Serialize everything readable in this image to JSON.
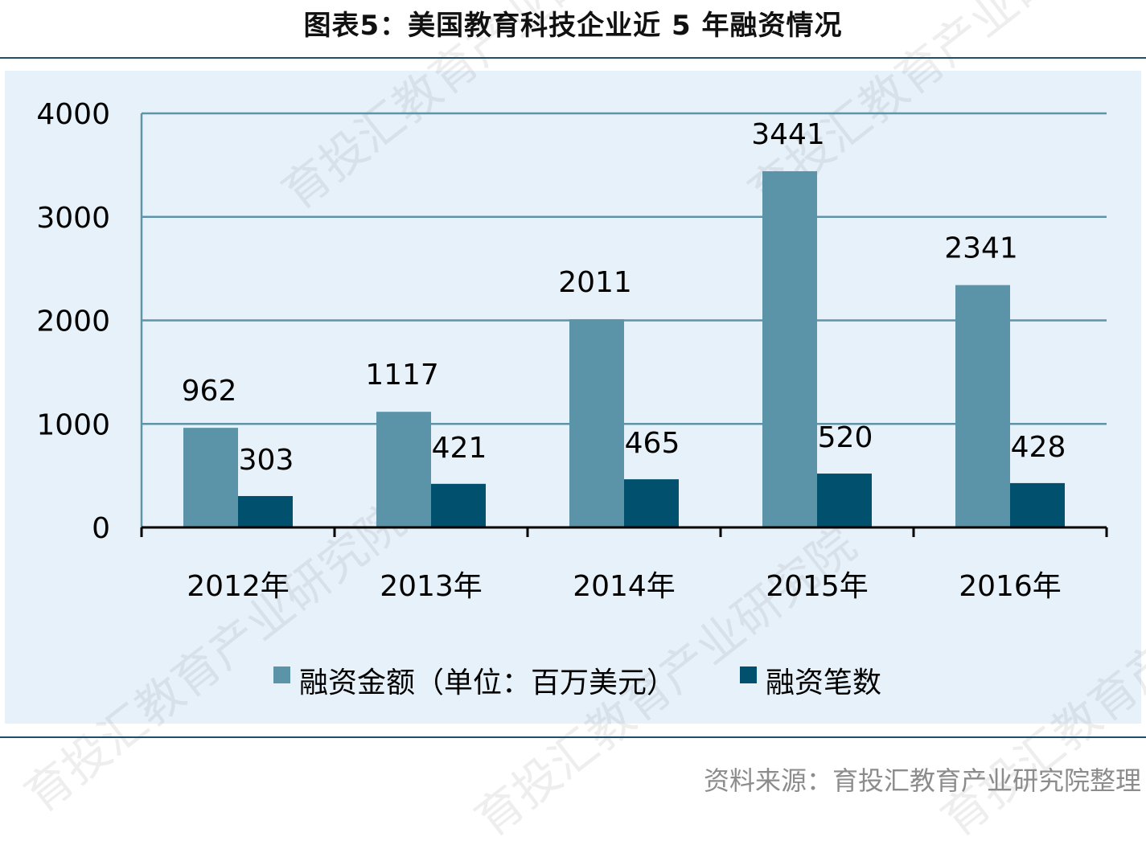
{
  "title": "图表5：美国教育科技企业近 5 年融资情况",
  "source": "资料来源：育投汇教育产业研究院整理",
  "watermark_text": "育投汇教育产业研究院",
  "colors": {
    "amount": "#5b93a8",
    "count": "#00506e",
    "grid": "#5e93a8",
    "axis": "#000000",
    "panel": "#e6f1fa"
  },
  "chart_data": {
    "type": "bar",
    "categories": [
      "2012年",
      "2013年",
      "2014年",
      "2015年",
      "2016年"
    ],
    "series": [
      {
        "name": "融资金额（单位：百万美元）",
        "values": [
          962,
          1117,
          2011,
          3441,
          2341
        ]
      },
      {
        "name": "融资笔数",
        "values": [
          303,
          421,
          465,
          520,
          428
        ]
      }
    ],
    "ylim": [
      0,
      4000
    ],
    "yticks": [
      "0",
      "1000",
      "2000",
      "3000",
      "4000"
    ],
    "grid": true,
    "legend": "bottom-center",
    "xlabel": "",
    "ylabel": ""
  }
}
